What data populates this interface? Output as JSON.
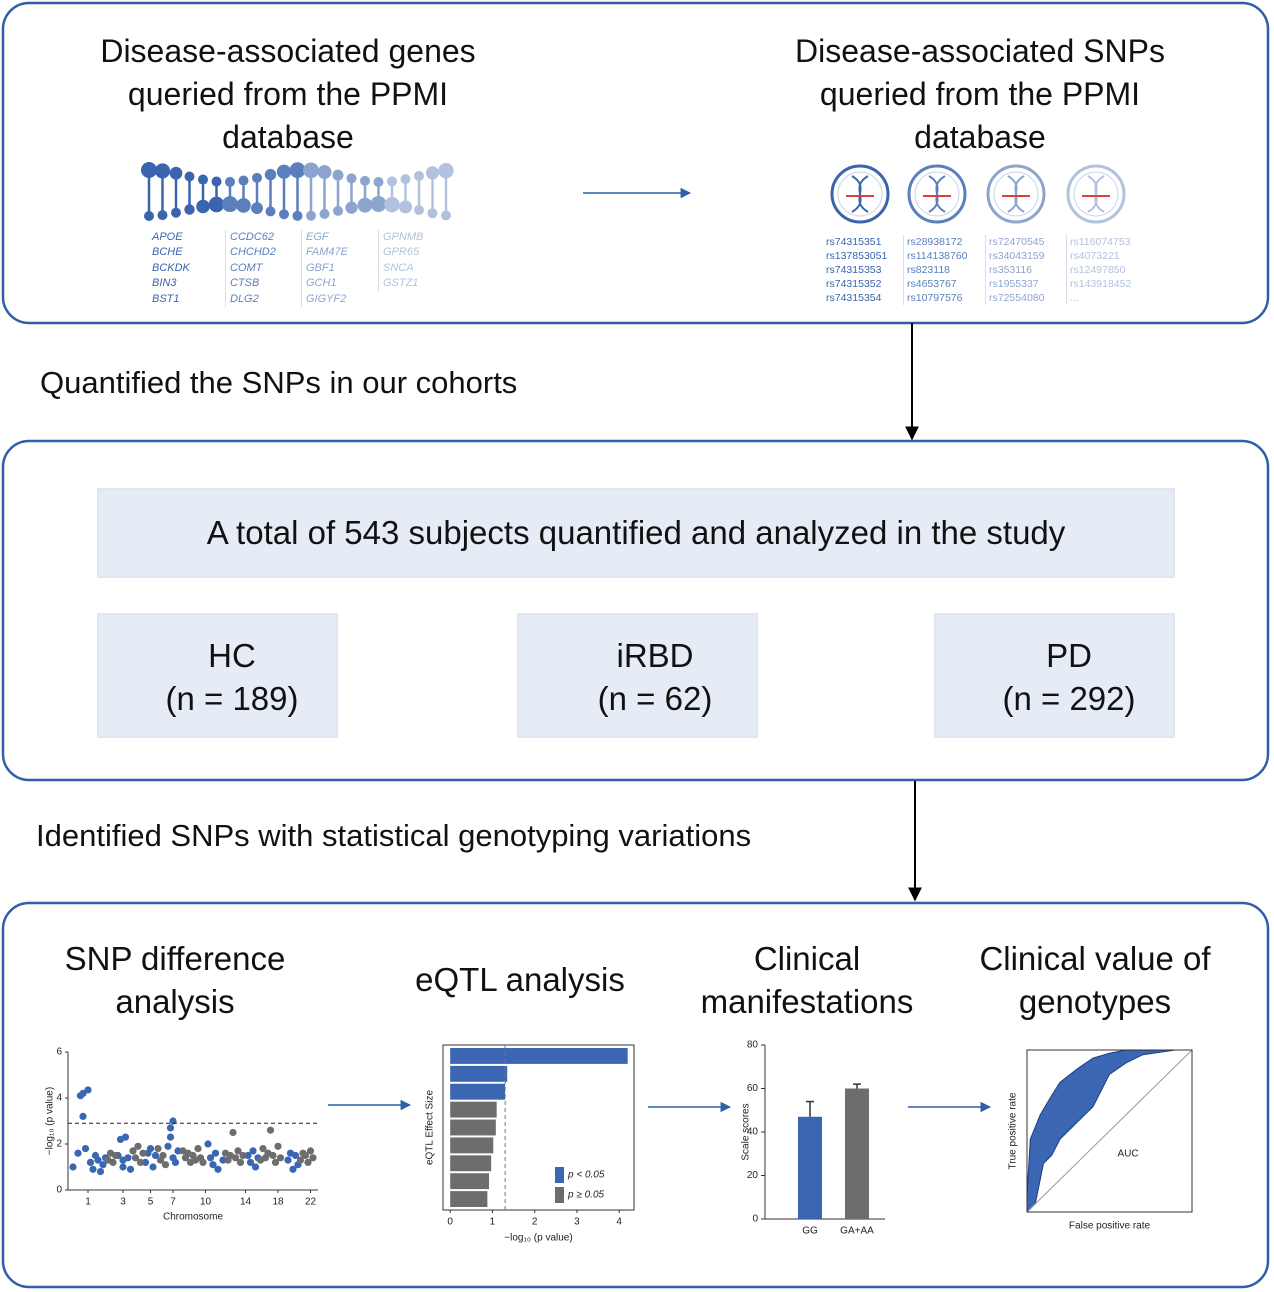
{
  "genes_panel": {
    "title": "Disease-associated genes queried from the PPMI database",
    "genes": [
      [
        "APOE",
        "BCHE",
        "BCKDK",
        "BIN3",
        "BST1"
      ],
      [
        "CCDC62",
        "CHCHD2",
        "COMT",
        "CTSB",
        "DLG2"
      ],
      [
        "EGF",
        "FAM47E",
        "GBF1",
        "GCH1",
        "GIGYF2"
      ],
      [
        "GPNMB",
        "GPR65",
        "SNCA",
        "GSTZ1"
      ]
    ]
  },
  "snps_panel": {
    "title": "Disease-associated SNPs queried from the PPMI database",
    "snps": [
      [
        "rs74315351",
        "rs137853051",
        "rs74315353",
        "rs74315352",
        "rs74315354"
      ],
      [
        "rs28938172",
        "rs114138760",
        "rs823118",
        "rs4653767",
        "rs10797576"
      ],
      [
        "rs72470545",
        "rs34043159",
        "rs353116",
        "rs1955337",
        "rs72554080"
      ],
      [
        "rs116074753",
        "rs4073221",
        "rs12497850",
        "rs143918452",
        "..."
      ]
    ]
  },
  "step1": "Quantified the SNPs in our cohorts",
  "cohort": {
    "total": "A total of 543 subjects quantified and analyzed in the study",
    "groups": [
      {
        "name": "HC",
        "count": "(n = 189)"
      },
      {
        "name": "iRBD",
        "count": "(n = 62)"
      },
      {
        "name": "PD",
        "count": "(n = 292)"
      }
    ]
  },
  "step2": "Identified SNPs with statistical genotyping variations",
  "analyses": [
    "SNP difference analysis",
    "eQTL analysis",
    "Clinical manifestations",
    "Clinical value of genotypes"
  ],
  "manhattan": {
    "ylabel": "−log₁₀ (p value)",
    "xlabel": "Chromosome",
    "xlim": [
      0,
      100
    ],
    "ylim": [
      0,
      6
    ],
    "yticks": [
      0,
      2,
      4,
      6
    ],
    "xticks": [
      {
        "value": 8,
        "label": "1"
      },
      {
        "value": 22,
        "label": "3"
      },
      {
        "value": 33,
        "label": "5"
      },
      {
        "value": 42,
        "label": "7"
      },
      {
        "value": 55,
        "label": "10"
      },
      {
        "value": 71,
        "label": "14"
      },
      {
        "value": 84,
        "label": "18"
      },
      {
        "value": 97,
        "label": "22"
      }
    ],
    "threshold": 2.9,
    "series": [
      {
        "color": "#3b66b3",
        "x": [
          2,
          4,
          5,
          6,
          6,
          7,
          8,
          9,
          10,
          11,
          12,
          13,
          14,
          15,
          20,
          21,
          22,
          22,
          23,
          24,
          25,
          31,
          32,
          33,
          34,
          35,
          40,
          41,
          41,
          42,
          42,
          43,
          44,
          56,
          57,
          58,
          59,
          60,
          62,
          72,
          73,
          74,
          75,
          76,
          88,
          89,
          90,
          91,
          92
        ],
        "values": [
          1.0,
          1.6,
          4.1,
          4.2,
          3.2,
          1.8,
          4.35,
          1.2,
          0.9,
          1.5,
          1.3,
          0.8,
          1.1,
          1.4,
          1.5,
          2.2,
          1.3,
          1.0,
          2.3,
          1.4,
          0.9,
          1.2,
          1.6,
          1.8,
          1.0,
          1.5,
          1.9,
          2.3,
          2.7,
          3.0,
          1.4,
          1.2,
          1.7,
          2.0,
          1.4,
          1.1,
          1.6,
          0.9,
          1.3,
          1.5,
          1.2,
          1.7,
          1.0,
          1.4,
          1.3,
          1.6,
          0.9,
          1.5,
          1.1
        ]
      },
      {
        "color": "#6d6d6d",
        "x": [
          16,
          17,
          18,
          19,
          26,
          27,
          28,
          29,
          30,
          36,
          37,
          38,
          39,
          46,
          47,
          48,
          49,
          50,
          51,
          52,
          53,
          54,
          63,
          64,
          65,
          66,
          67,
          68,
          69,
          70,
          77,
          78,
          79,
          80,
          81,
          82,
          83,
          84,
          85,
          93,
          94,
          95,
          96,
          97,
          98
        ],
        "values": [
          1.3,
          1.6,
          1.2,
          1.5,
          1.7,
          1.4,
          1.9,
          1.2,
          1.6,
          1.8,
          1.3,
          1.5,
          1.1,
          1.7,
          1.4,
          1.6,
          1.2,
          1.5,
          1.3,
          1.8,
          1.4,
          1.2,
          1.6,
          1.3,
          1.5,
          2.5,
          1.4,
          1.7,
          1.2,
          1.5,
          1.3,
          1.8,
          1.4,
          1.6,
          2.6,
          1.5,
          1.2,
          1.9,
          1.4,
          1.3,
          1.6,
          1.5,
          1.2,
          1.7,
          1.4
        ]
      }
    ]
  },
  "eqtl": {
    "ylabel": "eQTL Effect Size",
    "xlabel": "−log₁₀ (p value)",
    "xlim": [
      -0.17,
      4.35
    ],
    "xticks": [
      0,
      1,
      2,
      3,
      4
    ],
    "threshold": 1.3,
    "values": [
      4.2,
      1.35,
      1.3,
      1.1,
      1.08,
      1.02,
      0.97,
      0.92,
      0.88
    ],
    "colors": [
      "#3b66b3",
      "#3b66b3",
      "#3b66b3",
      "#6d6d6d",
      "#6d6d6d",
      "#6d6d6d",
      "#6d6d6d",
      "#6d6d6d",
      "#6d6d6d"
    ],
    "legend": [
      {
        "name": "p < 0.05",
        "color": "#3b66b3"
      },
      {
        "name": "p ≥ 0.05",
        "color": "#6d6d6d"
      }
    ]
  },
  "clinical": {
    "ylabel": "Scale scores",
    "categories": [
      "GG",
      "GA+AA"
    ],
    "values": [
      47,
      60
    ],
    "errors": [
      7,
      2
    ],
    "colors": [
      "#3b66b3",
      "#6d6d6d"
    ],
    "ylim": [
      0,
      80
    ],
    "yticks": [
      0,
      20,
      40,
      60,
      80
    ]
  },
  "roc": {
    "ylabel": "True positive rate",
    "xlabel": "False positive rate",
    "annotation": "AUC",
    "xlim": [
      0,
      1
    ],
    "ylim": [
      0,
      1
    ],
    "color": "#3b66b3",
    "upper": {
      "x": [
        0,
        0.02,
        0.08,
        0.15,
        0.2,
        0.3,
        0.4,
        0.5,
        0.6,
        1
      ],
      "y": [
        0.1,
        0.45,
        0.6,
        0.72,
        0.8,
        0.88,
        0.95,
        0.98,
        1,
        1
      ]
    },
    "lower": {
      "x": [
        0,
        0.05,
        0.08,
        0.1,
        0.15,
        0.2,
        0.3,
        0.4,
        0.45,
        0.5,
        0.6,
        0.7,
        0.9,
        1
      ],
      "y": [
        0,
        0.05,
        0.2,
        0.3,
        0.35,
        0.45,
        0.55,
        0.65,
        0.75,
        0.85,
        0.92,
        0.97,
        1,
        1
      ]
    }
  }
}
